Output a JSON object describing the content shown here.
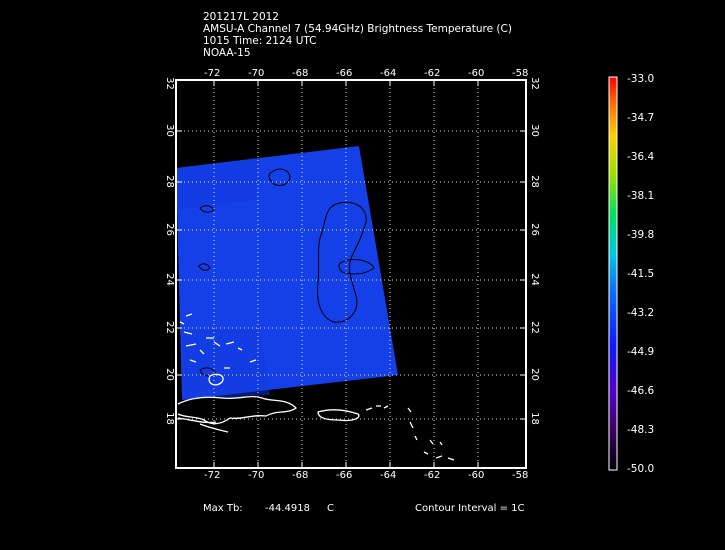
{
  "header": {
    "line1": "201217L 2012",
    "line2": "AMSU-A Channel 7 (54.94GHz) Brightness Temperature (C)",
    "line3": "1015 Time: 2124 UTC",
    "line4": "NOAA-15"
  },
  "map": {
    "lon_range": [
      -74,
      -58
    ],
    "lat_range": [
      16,
      32
    ],
    "lon_ticks": [
      "-72",
      "-70",
      "-68",
      "-66",
      "-64",
      "-62",
      "-60",
      "-58"
    ],
    "lat_ticks": [
      "18",
      "20",
      "22",
      "24",
      "26",
      "28",
      "30",
      "32"
    ],
    "colors": {
      "background": "#000000",
      "frame": "#ffffff",
      "field": "#1540e8",
      "field_dark": "#0f33d6",
      "coastline": "#ffffff",
      "contour": "#000000"
    }
  },
  "colorbar": {
    "labels": [
      "-33.0",
      "-34.7",
      "-36.4",
      "-38.1",
      "-39.8",
      "-41.5",
      "-43.2",
      "-44.9",
      "-46.6",
      "-48.3",
      "-50.0"
    ],
    "range": [
      -50.0,
      -33.0
    ]
  },
  "footer": {
    "max_label": "Max Tb:",
    "max_value": "-44.4918",
    "max_unit": "C",
    "contour_interval": "Contour Interval = 1C"
  }
}
